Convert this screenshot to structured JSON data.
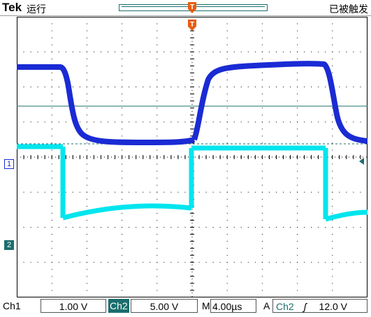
{
  "header": {
    "brand": "Tek",
    "run_state": "运行",
    "trigger_status": "已被触发"
  },
  "markers": {
    "trigger_position": "T",
    "ch1_marker": "1",
    "ch2_marker": "2"
  },
  "status_bar": {
    "ch1_label": "Ch1",
    "ch1_scale": "1.00 V",
    "ch2_label": "Ch2",
    "ch2_scale": "5.00 V",
    "timebase_label": "M",
    "timebase": "4.00µs",
    "trigger_label": "A",
    "trigger_source": "Ch2",
    "trigger_slope_icon": "rising-edge-icon",
    "trigger_level": "12.0 V"
  },
  "colors": {
    "background": "#ffffff",
    "graticule": "#000000",
    "ch1_trace": "#1a2bd4",
    "ch2_trace": "#00e5ee",
    "trigger_accent": "#e85c10",
    "ui_teal": "#1b6e6e"
  }
}
